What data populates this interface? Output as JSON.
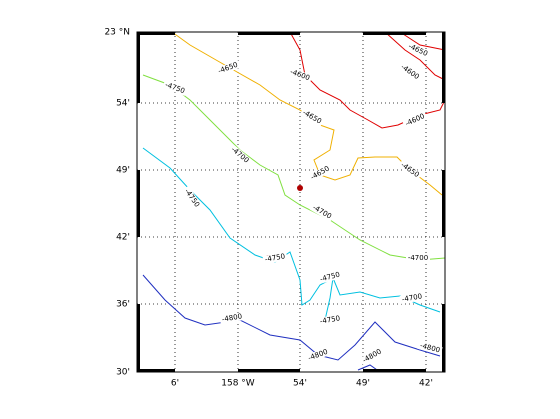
{
  "map": {
    "lat_labels": [
      "23 °N",
      "54'",
      "49'",
      "42'",
      "36'",
      "30'"
    ],
    "lon_labels": [
      "6'",
      "158 °W",
      "54'",
      "49'",
      "42'"
    ],
    "contour_labels": [
      "-4650",
      "-4600",
      "-4600",
      "-4600",
      "-4650",
      "-4750",
      "-4650",
      "-4700",
      "-4650",
      "-4650",
      "-4750",
      "-4700",
      "-4700",
      "-4750",
      "-4750",
      "-4700",
      "-4750",
      "-4800",
      "-4800",
      "-4800",
      "-4800"
    ]
  }
}
